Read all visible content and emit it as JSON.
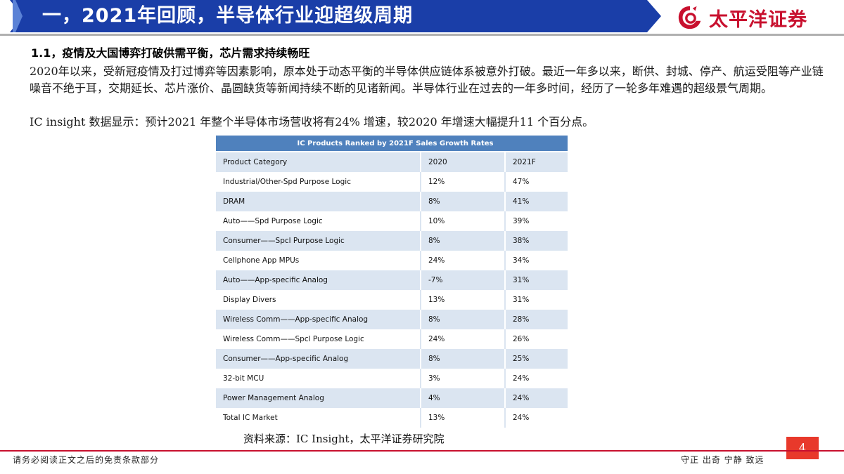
{
  "header": {
    "title": "一，2021年回顾，半导体行业迎超级周期",
    "logo_text": "太平洋证券",
    "banner_color": "#1a3ea8",
    "logo_color": "#c8102e"
  },
  "section": {
    "heading": "1.1，疫情及大国博弈打破供需平衡，芯片需求持续畅旺",
    "paragraph1": "2020年以来，受新冠疫情及打过博弈等因素影响，原本处于动态平衡的半导体供应链体系被意外打破。最近一年多以来，断供、封城、停产、航运受阻等产业链噪音不绝于耳，交期延长、芯片涨价、晶圆缺货等新闻持续不断的见诸新闻。半导体行业在过去的一年多时间，经历了一轮多年难遇的超级景气周期。",
    "paragraph2": "IC insight 数据显示：预计2021 年整个半导体市场营收将有24% 增速，较2020 年增速大幅提升11 个百分点。"
  },
  "table": {
    "title": "IC Products Ranked by 2021F Sales Growth Rates",
    "headers": [
      "Product Category",
      "2020",
      "2021F"
    ],
    "rows": [
      [
        "Industrial/Other-Spd Purpose Logic",
        "12%",
        "47%"
      ],
      [
        "DRAM",
        "8%",
        "41%"
      ],
      [
        "Auto——Spd Purpose Logic",
        "10%",
        "39%"
      ],
      [
        "Consumer——Spcl Purpose Logic",
        "8%",
        "38%"
      ],
      [
        "Cellphone App MPUs",
        "24%",
        "34%"
      ],
      [
        "Auto——App-specific Analog",
        "-7%",
        "31%"
      ],
      [
        "Display Divers",
        "13%",
        "31%"
      ],
      [
        "Wireless Comm——App-specific Analog",
        "8%",
        "28%"
      ],
      [
        "Wireless Comm——Spcl Purpose Logic",
        "24%",
        "26%"
      ],
      [
        "Consumer——App-specific Analog",
        "8%",
        "25%"
      ],
      [
        "32-bit MCU",
        "3%",
        "24%"
      ],
      [
        "Power Management Analog",
        "4%",
        "24%"
      ],
      [
        "Total IC Market",
        "13%",
        "24%"
      ]
    ],
    "header_color": "#4f81bd",
    "stripe_color": "#dbe5f1"
  },
  "source": "资料来源：IC Insight，太平洋证券研究院",
  "footer": {
    "disclaimer": "请务必阅读正文之后的免责条款部分",
    "motto": "守正  出奇  宁静  致远",
    "page_number": "4",
    "accent_color": "#e8392b"
  }
}
